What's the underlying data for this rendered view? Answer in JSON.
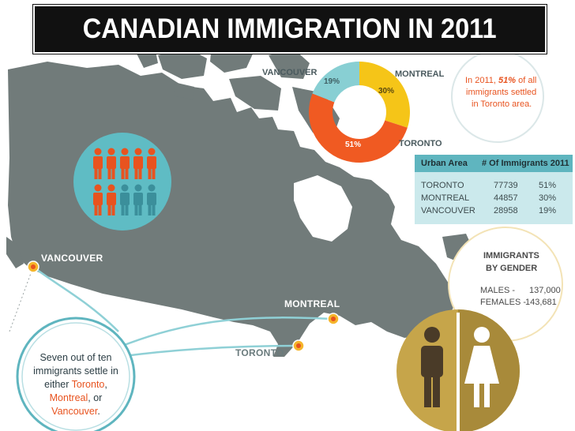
{
  "title": "CANADIAN IMMIGRATION IN 2011",
  "chart_data": [
    {
      "type": "pie",
      "categories": [
        "TORONTO",
        "MONTREAL",
        "VANCOUVER"
      ],
      "values": [
        51,
        30,
        19
      ],
      "value_labels": [
        "51%",
        "30%",
        "19%"
      ],
      "colors": [
        "#f05a22",
        "#f5c518",
        "#88cfd3"
      ]
    },
    {
      "type": "table",
      "columns": [
        "Urban Area",
        "# Of Immigrants 2011"
      ],
      "rows": [
        [
          "TORONTO",
          "77739",
          "51%"
        ],
        [
          "MONTREAL",
          "44857",
          "30%"
        ],
        [
          "VANCOUVER",
          "28958",
          "19%"
        ]
      ]
    }
  ],
  "callouts": {
    "toronto_share": {
      "prefix": "In 2011,",
      "highlight": "51%",
      "suffix_1": "of all",
      "line_2": "immigrants settled",
      "line_3": "in Toronto area."
    },
    "settle": {
      "line_1": "Seven out of ten",
      "line_2": "immigrants settle in",
      "line_3_prefix": "either",
      "city_1": "Toronto",
      "city_2": "Montreal",
      "line_4_suffix": ", or",
      "city_3": "Vancouver",
      "line_5_suffix": "."
    }
  },
  "map_cities": {
    "vancouver": "VANCOUVER",
    "montreal": "MONTREAL",
    "toronto": "TORONTO"
  },
  "gender": {
    "heading_1": "IMMIGRANTS",
    "heading_2": "BY GENDER",
    "males_label": "MALES -",
    "males_value": "137,000",
    "females_label": "FEMALES -",
    "females_value": "143,681"
  },
  "people_icons": {
    "highlighted_count": 7,
    "total_count": 10,
    "highlight_color": "#e8531f",
    "base_color": "#3b8f9b"
  },
  "colors": {
    "map_land": "#707b7a",
    "accent_teal": "#5fb5bf",
    "accent_orange": "#f05a22",
    "gold": "#c9a64a"
  }
}
